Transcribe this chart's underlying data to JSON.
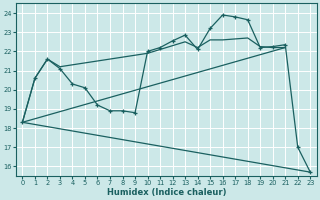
{
  "xlabel": "Humidex (Indice chaleur)",
  "xlim": [
    -0.5,
    23.5
  ],
  "ylim": [
    15.5,
    24.5
  ],
  "yticks": [
    16,
    17,
    18,
    19,
    20,
    21,
    22,
    23,
    24
  ],
  "xticks": [
    0,
    1,
    2,
    3,
    4,
    5,
    6,
    7,
    8,
    9,
    10,
    11,
    12,
    13,
    14,
    15,
    16,
    17,
    18,
    19,
    20,
    21,
    22,
    23
  ],
  "bg_color": "#cce8e8",
  "grid_color": "#ffffff",
  "line_color": "#1a6060",
  "line1_x": [
    0,
    1,
    2,
    3,
    4,
    5,
    6,
    7,
    8,
    9,
    10,
    11,
    12,
    13,
    14,
    15,
    16,
    17,
    18,
    19,
    20,
    21,
    22,
    23
  ],
  "line1_y": [
    18.3,
    20.6,
    21.6,
    21.1,
    20.3,
    20.1,
    19.2,
    18.9,
    18.9,
    18.8,
    22.0,
    22.2,
    22.55,
    22.85,
    22.1,
    23.2,
    23.9,
    23.8,
    23.65,
    22.2,
    22.25,
    22.35,
    17.0,
    15.7
  ],
  "line2_x": [
    0,
    1,
    2,
    3,
    10,
    11,
    12,
    13,
    14,
    15,
    16,
    17,
    18,
    19,
    20,
    21
  ],
  "line2_y": [
    18.3,
    20.6,
    21.6,
    21.2,
    21.9,
    22.1,
    22.3,
    22.5,
    22.2,
    22.6,
    22.6,
    22.65,
    22.7,
    22.25,
    22.2,
    22.2
  ],
  "line3_x": [
    0,
    21
  ],
  "line3_y": [
    18.3,
    22.2
  ],
  "line4_x": [
    0,
    23
  ],
  "line4_y": [
    18.3,
    15.7
  ]
}
